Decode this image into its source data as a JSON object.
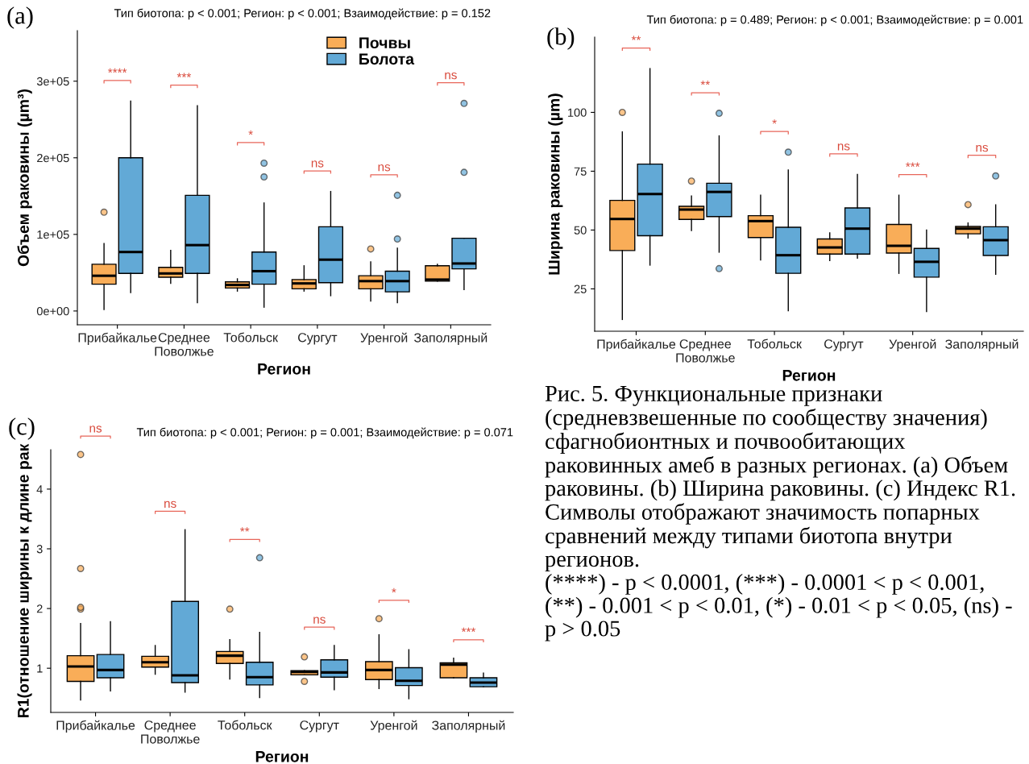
{
  "chart_data": [
    {
      "type": "box",
      "title": "Тип биотопа: p < 0.001; Регион: p < 0.001; Взаимодействие: p = 0.152",
      "xlabel": "Регион",
      "ylabel": "Объем раковины (µm³)",
      "categories": [
        "Прибайкалье",
        "Среднее\nПоволжье",
        "Тобольск",
        "Сургут",
        "Уренгой",
        "Заполярный"
      ],
      "series": [
        {
          "name": "Почвы",
          "color": "#f9ad58",
          "boxes": [
            {
              "low": 2000,
              "q1": 35000,
              "median": 46000,
              "q3": 61000,
              "high": 88000,
              "outliers": [
                129000
              ]
            },
            {
              "low": 36000,
              "q1": 44000,
              "median": 49000,
              "q3": 57000,
              "high": 79000
            },
            {
              "low": 26000,
              "q1": 30000,
              "median": 34000,
              "q3": 38000,
              "high": 42000
            },
            {
              "low": 26000,
              "q1": 29000,
              "median": 36000,
              "q3": 41000,
              "high": 59000
            },
            {
              "low": 13000,
              "q1": 29000,
              "median": 39000,
              "q3": 46000,
              "high": 64000,
              "outliers": [
                81000
              ]
            },
            {
              "low": 39000,
              "q1": 39000,
              "median": 41000,
              "q3": 59000,
              "high": 61000
            }
          ]
        },
        {
          "name": "Болота",
          "color": "#62a9d6",
          "boxes": [
            {
              "low": 24000,
              "q1": 49000,
              "median": 77000,
              "q3": 200000,
              "high": 274000
            },
            {
              "low": 11000,
              "q1": 49000,
              "median": 86000,
              "q3": 151000,
              "high": 268000
            },
            {
              "low": 5000,
              "q1": 35000,
              "median": 52000,
              "q3": 77000,
              "high": 141000,
              "outliers": [
                175000,
                193000
              ]
            },
            {
              "low": 20000,
              "q1": 37000,
              "median": 67000,
              "q3": 110000,
              "high": 156000
            },
            {
              "low": 11000,
              "q1": 25000,
              "median": 39000,
              "q3": 52000,
              "high": 82000,
              "outliers": [
                94000,
                151000
              ]
            },
            {
              "low": 28000,
              "q1": 55000,
              "median": 62000,
              "q3": 95000,
              "high": 95000,
              "outliers": [
                181000,
                271000
              ]
            }
          ]
        }
      ],
      "ylim": [
        -18000,
        366000
      ],
      "yticks": [
        {
          "value": 0,
          "label": "0e+00"
        },
        {
          "value": 100000,
          "label": "1e+05"
        },
        {
          "value": 200000,
          "label": "2e+05"
        },
        {
          "value": 300000,
          "label": "3e+05"
        }
      ],
      "legend": "top right",
      "annotations": [
        "(a)",
        "****",
        "***",
        "*",
        "ns",
        "ns",
        "ns"
      ]
    },
    {
      "type": "box",
      "title": "Тип биотопа: p = 0.489; Регион: p < 0.001; Взаимодействие: p = 0.001",
      "xlabel": "Регион",
      "ylabel": "Ширина раковины (µm)",
      "categories": [
        "Прибайкалье",
        "Среднее\nПоволжье",
        "Тобольск",
        "Сургут",
        "Уренгой",
        "Заполярный"
      ],
      "series": [
        {
          "color": "#f9ad58",
          "boxes": [
            {
              "low": 12,
              "q1": 41.3,
              "median": 54.7,
              "q3": 62.6,
              "high": 91.7,
              "outliers": [
                100
              ]
            },
            {
              "low": 49.8,
              "q1": 54.5,
              "median": 58.7,
              "q3": 60.1,
              "high": 64.5,
              "outliers": [
                70.8
              ]
            },
            {
              "low": 37.3,
              "q1": 46.8,
              "median": 53.8,
              "q3": 56.1,
              "high": 64.8
            },
            {
              "low": 37,
              "q1": 39.8,
              "median": 42.6,
              "q3": 46.2,
              "high": 48.8
            },
            {
              "low": 31.6,
              "q1": 40.2,
              "median": 43.3,
              "q3": 52.4,
              "high": 64.8
            },
            {
              "low": 46.6,
              "q1": 48.4,
              "median": 50.6,
              "q3": 51.5,
              "high": 53,
              "outliers": [
                60.8
              ]
            }
          ]
        },
        {
          "color": "#62a9d6",
          "boxes": [
            {
              "low": 35.1,
              "q1": 47.6,
              "median": 65.3,
              "q3": 78,
              "high": 118.6
            },
            {
              "low": 40.6,
              "q1": 55.7,
              "median": 66.2,
              "q3": 69.9,
              "high": 90,
              "outliers": [
                99.6,
                33.6
              ]
            },
            {
              "low": 15.7,
              "q1": 31.6,
              "median": 39.3,
              "q3": 51.2,
              "high": 75.5,
              "outliers": [
                83.1
              ]
            },
            {
              "low": 38.1,
              "q1": 39.8,
              "median": 50.6,
              "q3": 59.4,
              "high": 73.6
            },
            {
              "low": 15.4,
              "q1": 30,
              "median": 36.5,
              "q3": 42.2,
              "high": 50
            },
            {
              "low": 31.2,
              "q1": 39.2,
              "median": 45.7,
              "q3": 51.4,
              "high": 60.7,
              "outliers": [
                73
              ]
            }
          ]
        }
      ],
      "ylim": [
        7,
        132
      ],
      "yticks": [
        25,
        50,
        75,
        100
      ],
      "annotations": [
        "(b)",
        "**",
        "**",
        "*",
        "ns",
        "***",
        "ns"
      ]
    },
    {
      "type": "box",
      "title": "Тип биотопа: p < 0.001; Регион: p = 0.001; Взаимодействие: p = 0.071",
      "xlabel": "Регион",
      "ylabel": "R1(отношение ширины к длине рак",
      "categories": [
        "Прибайкалье",
        "Среднее\nПоволжье",
        "Тобольск",
        "Сургут",
        "Уренгой",
        "Заполярный"
      ],
      "series": [
        {
          "color": "#f9ad58",
          "boxes": [
            {
              "low": 0.47,
              "q1": 0.78,
              "median": 1.03,
              "q3": 1.21,
              "high": 1.75,
              "outliers": [
                1.99,
                2.02,
                2.67,
                4.58
              ]
            },
            {
              "low": 0.9,
              "q1": 1.02,
              "median": 1.1,
              "q3": 1.2,
              "high": 1.38
            },
            {
              "low": 0.82,
              "q1": 1.08,
              "median": 1.21,
              "q3": 1.28,
              "high": 1.48,
              "outliers": [
                1.99
              ]
            },
            {
              "low": 0.89,
              "q1": 0.89,
              "median": 0.94,
              "q3": 0.96,
              "high": 0.96,
              "outliers": [
                1.19,
                0.78
              ]
            },
            {
              "low": 0.66,
              "q1": 0.81,
              "median": 0.97,
              "q3": 1.11,
              "high": 1.56,
              "outliers": [
                1.83
              ]
            },
            {
              "low": 0.84,
              "q1": 0.84,
              "median": 1.06,
              "q3": 1.09,
              "high": 1.17
            }
          ]
        },
        {
          "color": "#62a9d6",
          "boxes": [
            {
              "low": 0.62,
              "q1": 0.84,
              "median": 0.97,
              "q3": 1.23,
              "high": 1.78
            },
            {
              "low": 0.6,
              "q1": 0.76,
              "median": 0.88,
              "q3": 2.12,
              "high": 3.32
            },
            {
              "low": 0.51,
              "q1": 0.72,
              "median": 0.85,
              "q3": 1.1,
              "high": 1.6,
              "outliers": [
                2.85
              ]
            },
            {
              "low": 0.64,
              "q1": 0.85,
              "median": 0.93,
              "q3": 1.14,
              "high": 1.38
            },
            {
              "low": 0.49,
              "q1": 0.71,
              "median": 0.79,
              "q3": 1.01,
              "high": 1.31
            },
            {
              "low": 0.69,
              "q1": 0.69,
              "median": 0.76,
              "q3": 0.84,
              "high": 0.92
            }
          ]
        }
      ],
      "ylim": [
        0.26,
        4.66
      ],
      "yticks": [
        1,
        2,
        3,
        4
      ],
      "annotations": [
        "(c)",
        "ns",
        "ns",
        "**",
        "ns",
        "*",
        "***"
      ]
    },
    {
      "type": "other",
      "annotations": [
        "Рис. 5. Функциональные признаки (средневзвешенные по сообществу значения) сфагнобионтных и почвообитающих раковинных амеб в разных регионах. (a) Объем раковины. (b) Ширина раковины. (c) Индекс R1. Символы отображают значимость попарных сравнений между типами биотопа внутри регионов.",
        "(****) - p < 0.0001, (***) - 0.0001 < p < 0.001, (**) - 0.001 < p < 0.01, (*) - 0.01 < p < 0.05, (ns) - p > 0.05"
      ]
    }
  ]
}
